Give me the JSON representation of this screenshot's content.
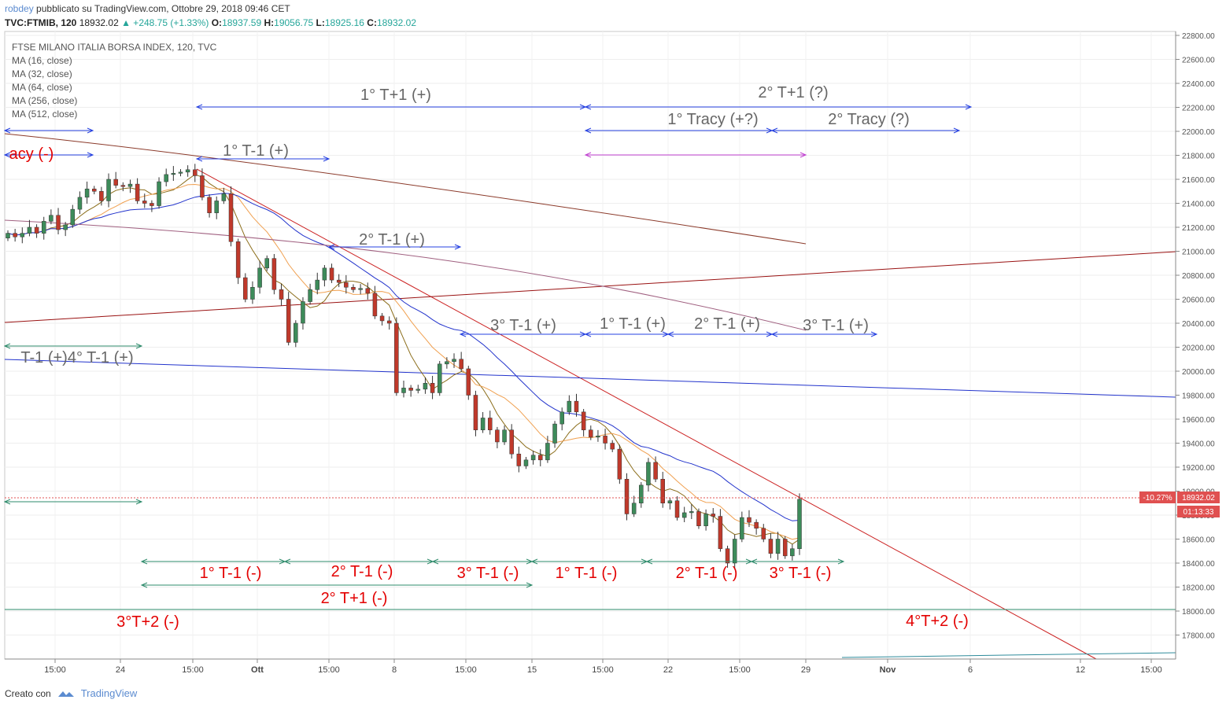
{
  "header": {
    "author": "robdey",
    "published": "pubblicato su TradingView.com, Ottobre 29, 2018 09:46 CET",
    "symbol": "TVC:FTMIB, 120",
    "last": "18932.02",
    "change": "▲ +248.75 (+1.33%)",
    "o_label": "O:",
    "o": "18937.59",
    "h_label": "H:",
    "h": "19056.75",
    "l_label": "L:",
    "l": "18925.16",
    "c_label": "C:",
    "c": "18932.02"
  },
  "legend": {
    "title": "FTSE MILANO ITALIA BORSA INDEX, 120, TVC",
    "items": [
      "MA (16, close)",
      "MA (32, close)",
      "MA (64, close)",
      "MA (256, close)",
      "MA (512, close)"
    ]
  },
  "footer": {
    "created": "Creato con",
    "brand": "TradingView"
  },
  "price_label": {
    "pct": "-10.27%",
    "price": "18932.02",
    "countdown": "01:13:33"
  },
  "colors": {
    "up": "#26a69a",
    "down": "#ef5350",
    "blue_annot": "#2962ff",
    "green_annot": "#2e7d5b",
    "red_text": "#e30000",
    "gray_text": "#666666"
  },
  "chart_data": {
    "type": "candlestick",
    "title": "FTSE MILANO ITALIA BORSA INDEX, 120, TVC",
    "ylim": [
      17600,
      22800
    ],
    "y_ticks": [
      17800,
      18000,
      18200,
      18400,
      18600,
      18800,
      19000,
      19200,
      19400,
      19600,
      19800,
      20000,
      20200,
      20400,
      20600,
      20800,
      21000,
      21200,
      21400,
      21600,
      21800,
      22000,
      22200,
      22400,
      22600,
      22800
    ],
    "x_ticks": [
      "15:00",
      "24",
      "15:00",
      "Ott",
      "15:00",
      "8",
      "15:00",
      "15",
      "15:00",
      "22",
      "15:00",
      "29",
      "Nov",
      "6",
      "12",
      "15:00"
    ],
    "closes": [
      21150,
      21120,
      21150,
      21200,
      21150,
      21250,
      21300,
      21180,
      21220,
      21350,
      21450,
      21520,
      21500,
      21420,
      21600,
      21550,
      21540,
      21560,
      21420,
      21400,
      21380,
      21580,
      21640,
      21650,
      21660,
      21680,
      21630,
      21450,
      21320,
      21420,
      21480,
      21080,
      20780,
      20600,
      20700,
      20860,
      20940,
      20680,
      20600,
      20240,
      20400,
      20580,
      20680,
      20760,
      20860,
      20760,
      20740,
      20700,
      20680,
      20690,
      20650,
      20460,
      20420,
      20400,
      19820,
      19860,
      19840,
      19850,
      19900,
      19820,
      20060,
      20080,
      20100,
      20020,
      19800,
      19510,
      19610,
      19510,
      19410,
      19510,
      19310,
      19210,
      19260,
      19300,
      19260,
      19400,
      19560,
      19660,
      19750,
      19660,
      19510,
      19450,
      19460,
      19400,
      19350,
      19100,
      18810,
      18900,
      19050,
      19240,
      19100,
      18900,
      18920,
      18780,
      18820,
      18830,
      18710,
      18810,
      18790,
      18520,
      18400,
      18600,
      18780,
      18740,
      18690,
      18600,
      18480,
      18600,
      18460,
      18520,
      18932
    ],
    "ma_labels": [
      "MA (16, close)",
      "MA (32, close)",
      "MA (64, close)",
      "MA (256, close)",
      "MA (512, close)"
    ],
    "annotations": [
      {
        "text": "1° T+1 (+)",
        "color": "gray"
      },
      {
        "text": "2° T+1 (?)",
        "color": "gray"
      },
      {
        "text": "1° Tracy (+?)",
        "color": "gray"
      },
      {
        "text": "2° Tracy (?)",
        "color": "gray"
      },
      {
        "text": "acy (-)",
        "color": "red"
      },
      {
        "text": "1° T-1 (+)",
        "color": "gray"
      },
      {
        "text": "2° T-1 (+)",
        "color": "gray"
      },
      {
        "text": "3° T-1 (+)",
        "color": "gray"
      },
      {
        "text": "1° T-1 (+)",
        "color": "gray"
      },
      {
        "text": "2° T-1 (+)",
        "color": "gray"
      },
      {
        "text": "3° T-1 (+)",
        "color": "gray"
      },
      {
        "text": "T-1 (+)4° T-1 (+)",
        "color": "gray"
      },
      {
        "text": "1° T-1 (-)",
        "color": "red"
      },
      {
        "text": "2° T-1 (-)",
        "color": "red"
      },
      {
        "text": "3° T-1 (-)",
        "color": "red"
      },
      {
        "text": "1° T-1 (-)",
        "color": "red"
      },
      {
        "text": "2° T-1 (-)",
        "color": "red"
      },
      {
        "text": "3° T-1 (-)",
        "color": "red"
      },
      {
        "text": "2° T+1 (-)",
        "color": "red"
      },
      {
        "text": "3°T+2 (-)",
        "color": "red"
      },
      {
        "text": "4°T+2 (-)",
        "color": "red"
      }
    ]
  }
}
